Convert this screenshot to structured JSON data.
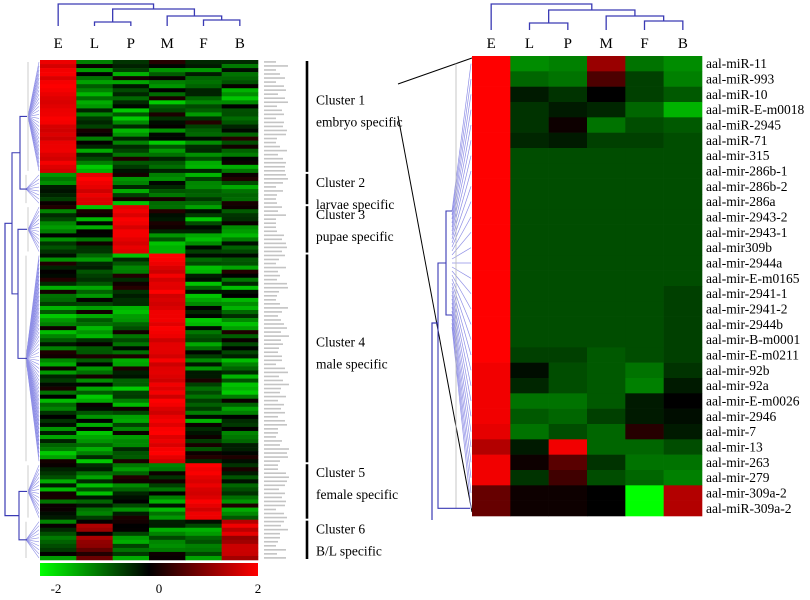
{
  "chart_data": {
    "type": "heatmap",
    "scale": {
      "min": -2,
      "max": 2,
      "tick_labels": [
        "-2",
        "0",
        "2"
      ],
      "colors": [
        "#00ff00",
        "#000000",
        "#ff0000"
      ]
    },
    "columns": [
      "E",
      "L",
      "P",
      "M",
      "F",
      "B"
    ],
    "left_heatmap": {
      "row_count": 124,
      "clusters": [
        {
          "name": "Cluster 1",
          "description": "embryo specific",
          "peak_column": "E",
          "rows": 28
        },
        {
          "name": "Cluster 2",
          "description": "larvae specific",
          "peak_column": "L",
          "rows": 8
        },
        {
          "name": "Cluster 3",
          "description": "pupae specific",
          "peak_column": "P",
          "rows": 12
        },
        {
          "name": "Cluster 4",
          "description": "male specific",
          "peak_column": "M",
          "rows": 52
        },
        {
          "name": "Cluster 5",
          "description": "female specific",
          "peak_column": "F",
          "rows": 14
        },
        {
          "name": "Cluster 6",
          "description": "B/L specific",
          "peak_column": "B",
          "rows": 10
        }
      ]
    },
    "right_heatmap": {
      "rows": [
        {
          "label": "aal-miR-11",
          "values": [
            2.0,
            -1.1,
            -1.0,
            1.2,
            -0.9,
            -1.1
          ]
        },
        {
          "label": "aal-miR-993",
          "values": [
            2.0,
            -0.8,
            -0.9,
            0.6,
            -0.5,
            -1.0
          ]
        },
        {
          "label": "aal-miR-10",
          "values": [
            2.0,
            -0.2,
            -0.4,
            0.0,
            -0.5,
            -0.7
          ]
        },
        {
          "label": "aal-miR-E-m0018",
          "values": [
            2.0,
            -0.4,
            -0.2,
            -0.3,
            -0.8,
            -1.4
          ]
        },
        {
          "label": "aal-miR-2945",
          "values": [
            2.0,
            -0.4,
            0.1,
            -0.9,
            -0.6,
            -0.7
          ]
        },
        {
          "label": "aal-miR-71",
          "values": [
            2.0,
            -0.3,
            -0.2,
            -0.5,
            -0.5,
            -0.6
          ]
        },
        {
          "label": "aal-mir-315",
          "values": [
            2.0,
            -0.6,
            -0.6,
            -0.6,
            -0.6,
            -0.6
          ]
        },
        {
          "label": "aal-mir-286b-1",
          "values": [
            2.0,
            -0.6,
            -0.6,
            -0.6,
            -0.6,
            -0.6
          ]
        },
        {
          "label": "aal-mir-286b-2",
          "values": [
            2.0,
            -0.6,
            -0.6,
            -0.6,
            -0.6,
            -0.6
          ]
        },
        {
          "label": "aal-mir-286a",
          "values": [
            2.0,
            -0.6,
            -0.6,
            -0.6,
            -0.6,
            -0.6
          ]
        },
        {
          "label": "aal-mir-2943-2",
          "values": [
            2.0,
            -0.6,
            -0.6,
            -0.6,
            -0.6,
            -0.6
          ]
        },
        {
          "label": "aal-mir-2943-1",
          "values": [
            2.0,
            -0.6,
            -0.6,
            -0.6,
            -0.6,
            -0.6
          ]
        },
        {
          "label": "aal-mir309b",
          "values": [
            2.0,
            -0.6,
            -0.6,
            -0.6,
            -0.6,
            -0.6
          ]
        },
        {
          "label": "aal-mir-2944a",
          "values": [
            2.0,
            -0.6,
            -0.6,
            -0.6,
            -0.6,
            -0.6
          ]
        },
        {
          "label": "aal-mir-E-m0165",
          "values": [
            2.0,
            -0.6,
            -0.6,
            -0.6,
            -0.6,
            -0.6
          ]
        },
        {
          "label": "aal-mir-2941-1",
          "values": [
            2.0,
            -0.6,
            -0.6,
            -0.6,
            -0.6,
            -0.5
          ]
        },
        {
          "label": "aal-mir-2941-2",
          "values": [
            2.0,
            -0.6,
            -0.6,
            -0.6,
            -0.6,
            -0.5
          ]
        },
        {
          "label": "aal-mir-2944b",
          "values": [
            2.0,
            -0.6,
            -0.6,
            -0.6,
            -0.6,
            -0.5
          ]
        },
        {
          "label": "aal-mir-B-m0001",
          "values": [
            2.0,
            -0.6,
            -0.6,
            -0.6,
            -0.6,
            -0.5
          ]
        },
        {
          "label": "aal-mir-E-m0211",
          "values": [
            2.0,
            -0.5,
            -0.5,
            -0.7,
            -0.6,
            -0.5
          ]
        },
        {
          "label": "aal-mir-92b",
          "values": [
            1.9,
            -0.1,
            -0.6,
            -0.7,
            -0.9,
            -0.4
          ]
        },
        {
          "label": "aal-mir-92a",
          "values": [
            1.9,
            -0.3,
            -0.6,
            -0.7,
            -1.0,
            -0.2
          ]
        },
        {
          "label": "aal-mir-E-m0026",
          "values": [
            1.9,
            -0.9,
            -0.9,
            -0.7,
            -0.2,
            0.0
          ]
        },
        {
          "label": "aal-mir-2946",
          "values": [
            1.9,
            -0.7,
            -0.8,
            -0.5,
            -0.2,
            -0.1
          ]
        },
        {
          "label": "aal-mir-7",
          "values": [
            1.8,
            -0.9,
            -0.6,
            -0.8,
            0.3,
            -0.2
          ]
        },
        {
          "label": "aal-mir-13",
          "values": [
            1.4,
            -0.2,
            1.9,
            -0.8,
            -0.8,
            -0.6
          ]
        },
        {
          "label": "aal-mir-263",
          "values": [
            1.9,
            0.1,
            0.7,
            -0.4,
            -0.9,
            -0.9
          ]
        },
        {
          "label": "aal-mir-279",
          "values": [
            1.9,
            -0.4,
            0.5,
            -0.6,
            -0.8,
            -1.0
          ]
        },
        {
          "label": "aal-mir-309a-2",
          "values": [
            0.8,
            0.1,
            0.1,
            0.0,
            -2.0,
            1.4
          ]
        },
        {
          "label": "aal-miR-309a-2",
          "values": [
            0.8,
            0.1,
            0.1,
            0.0,
            -2.0,
            1.4
          ]
        }
      ]
    }
  }
}
